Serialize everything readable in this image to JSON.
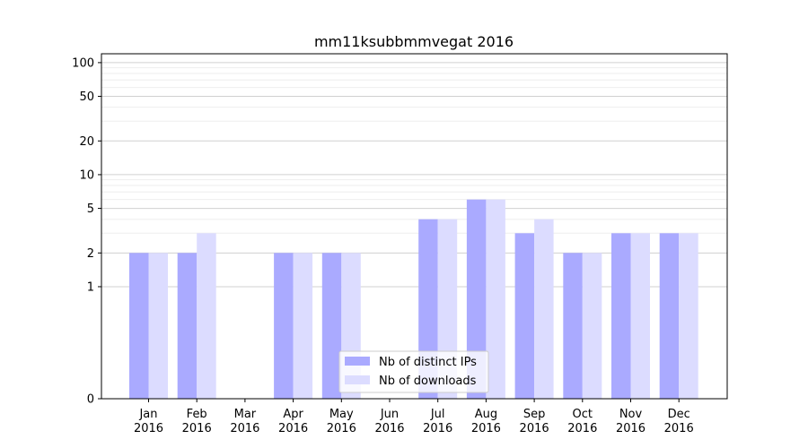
{
  "chart_data": {
    "type": "bar",
    "title": "mm11ksubbmmvegat 2016",
    "xlabel": "",
    "ylabel": "",
    "y_scale": "symlog",
    "ylim": [
      0,
      120
    ],
    "y_ticks": [
      0,
      1,
      2,
      5,
      10,
      20,
      50,
      100
    ],
    "y_tick_labels": [
      "0",
      "1",
      "2",
      "5",
      "10",
      "20",
      "50",
      "100"
    ],
    "categories": [
      {
        "month": "Jan",
        "year": "2016"
      },
      {
        "month": "Feb",
        "year": "2016"
      },
      {
        "month": "Mar",
        "year": "2016"
      },
      {
        "month": "Apr",
        "year": "2016"
      },
      {
        "month": "May",
        "year": "2016"
      },
      {
        "month": "Jun",
        "year": "2016"
      },
      {
        "month": "Jul",
        "year": "2016"
      },
      {
        "month": "Aug",
        "year": "2016"
      },
      {
        "month": "Sep",
        "year": "2016"
      },
      {
        "month": "Oct",
        "year": "2016"
      },
      {
        "month": "Nov",
        "year": "2016"
      },
      {
        "month": "Dec",
        "year": "2016"
      }
    ],
    "series": [
      {
        "name": "Nb of distinct IPs",
        "color": "#aaaaff",
        "values": [
          2,
          2,
          0,
          2,
          2,
          0,
          4,
          6,
          3,
          2,
          3,
          3
        ]
      },
      {
        "name": "Nb of downloads",
        "color": "#dcdcff",
        "values": [
          2,
          3,
          0,
          2,
          2,
          0,
          4,
          6,
          4,
          2,
          3,
          3
        ]
      }
    ],
    "grid": true,
    "legend_position": "bottom-center"
  }
}
